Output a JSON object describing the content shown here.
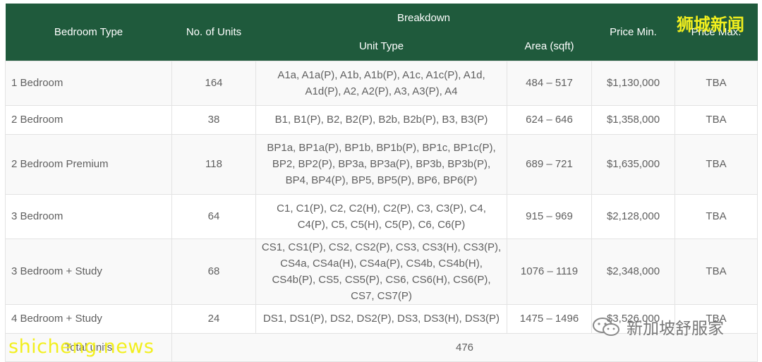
{
  "header": {
    "bedroom_type": "Bedroom Type",
    "no_of_units": "No. of Units",
    "breakdown": "Breakdown",
    "unit_type": "Unit Type",
    "area": "Area (sqft)",
    "price_min": "Price Min.",
    "price_max": "Price Max."
  },
  "rows": [
    {
      "bedroom": "1 Bedroom",
      "units": "164",
      "unit_type": "A1a, A1a(P), A1b, A1b(P), A1c, A1c(P), A1d, A1d(P), A2, A2(P), A3, A3(P), A4",
      "area": "484 – 517",
      "price_min": "$1,130,000",
      "price_max": "TBA"
    },
    {
      "bedroom": "2 Bedroom",
      "units": "38",
      "unit_type": "B1, B1(P), B2, B2(P), B2b, B2b(P), B3, B3(P)",
      "area": "624 – 646",
      "price_min": "$1,358,000",
      "price_max": "TBA"
    },
    {
      "bedroom": "2 Bedroom Premium",
      "units": "118",
      "unit_type": "BP1a, BP1a(P), BP1b, BP1b(P), BP1c, BP1c(P), BP2, BP2(P), BP3a, BP3a(P), BP3b, BP3b(P), BP4, BP4(P), BP5, BP5(P), BP6, BP6(P)",
      "area": "689 – 721",
      "price_min": "$1,635,000",
      "price_max": "TBA"
    },
    {
      "bedroom": "3 Bedroom",
      "units": "64",
      "unit_type": "C1, C1(P), C2, C2(H), C2(P), C3, C3(P), C4, C4(P), C5, C5(H), C5(P), C6, C6(P)",
      "area": "915 – 969",
      "price_min": "$2,128,000",
      "price_max": "TBA"
    },
    {
      "bedroom": "3 Bedroom + Study",
      "units": "68",
      "unit_type": "CS1, CS1(P), CS2, CS2(P), CS3, CS3(H), CS3(P), CS4a, CS4a(H), CS4a(P), CS4b, CS4b(H), CS4b(P), CS5, CS5(P), CS6, CS6(H), CS6(P), CS7, CS7(P)",
      "area": "1076 – 1119",
      "price_min": "$2,348,000",
      "price_max": "TBA"
    },
    {
      "bedroom": "4 Bedroom + Study",
      "units": "24",
      "unit_type": "DS1, DS1(P), DS2, DS2(P), DS3, DS3(H), DS3(P)",
      "area": "1475 – 1496",
      "price_min": "$3,526,000",
      "price_max": "TBA"
    }
  ],
  "total": {
    "label": "Total units",
    "value": "476"
  },
  "watermarks": {
    "top_right": "狮城新闻",
    "bottom_left": "shicheng.news",
    "wechat": "新加坡舒服家",
    "wechat_icon": "wechat-icon"
  },
  "colors": {
    "header_bg": "#1f5a3c",
    "watermark": "#f2ef1e"
  }
}
